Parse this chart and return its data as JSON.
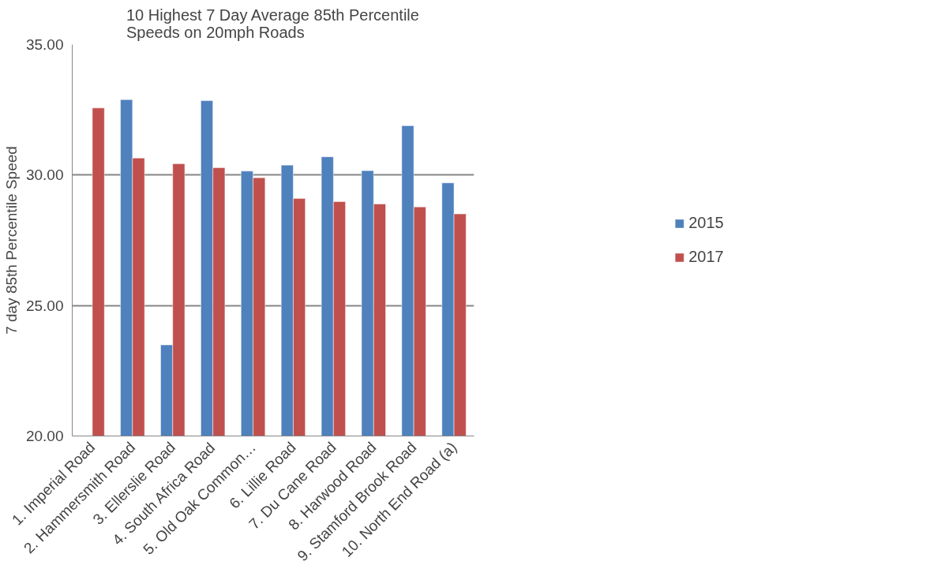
{
  "chart_data": {
    "type": "bar",
    "title": "10 Highest 7 Day Average 85th Percentile\nSpeeds on 20mph Roads",
    "ylabel": "7 day 85th Percentile Speed",
    "categories": [
      "1. Imperial Road",
      "2. Hammersmith Road",
      "3. Ellerslie Road",
      "4. South Africa Road",
      "5. Old Oak Common…",
      "6. Lillie Road",
      "7. Du Cane Road",
      "8. Harwood Road",
      "9. Stamford Brook Road",
      "10. North End Road (a)"
    ],
    "series": [
      {
        "name": "2015",
        "color": "#4f81bd",
        "values": [
          null,
          32.89,
          23.49,
          32.85,
          30.15,
          30.38,
          30.7,
          30.17,
          31.89,
          29.7
        ]
      },
      {
        "name": "2017",
        "color": "#c0504d",
        "values": [
          32.57,
          30.65,
          30.43,
          30.28,
          29.9,
          29.1,
          28.98,
          28.89,
          28.78,
          28.51
        ]
      }
    ],
    "ylim": [
      20,
      35
    ],
    "yticks": [
      {
        "value": 20,
        "label": "20.00"
      },
      {
        "value": 25,
        "label": "25.00"
      },
      {
        "value": 30,
        "label": "30.00"
      },
      {
        "value": 35,
        "label": "35.00"
      }
    ],
    "grid": "y",
    "legend": "right"
  }
}
